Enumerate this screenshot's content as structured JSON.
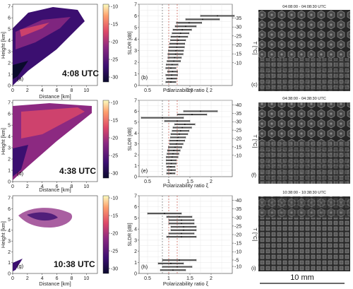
{
  "rows": [
    {
      "radar": {
        "label": "(a)",
        "time": "4:08 UTC"
      },
      "profile": {
        "label": "(b)",
        "temp_ticks": [
          "-35",
          "-30",
          "-25",
          "-20",
          "-15",
          "-10"
        ]
      },
      "image": {
        "label": "(c)",
        "title": "04:08:00 - 04:08:30 UTC"
      }
    },
    {
      "radar": {
        "label": "(d)",
        "time": "4:38 UTC"
      },
      "profile": {
        "label": "(e)",
        "temp_ticks": [
          "-40",
          "-35",
          "-30",
          "-25",
          "-20",
          "-15",
          "-10"
        ]
      },
      "image": {
        "label": "(f)",
        "title": "04:38:00 - 04:38:30 UTC"
      }
    },
    {
      "radar": {
        "label": "(g)",
        "time": "10:38 UTC"
      },
      "profile": {
        "label": "(h)",
        "temp_ticks": [
          "-40",
          "-35",
          "-30",
          "-25",
          "-20",
          "-15",
          "-10",
          "-10",
          "-5"
        ]
      },
      "image": {
        "label": "(i)",
        "title": "10:38:00 - 10:38:30 UTC"
      }
    }
  ],
  "radar_axes": {
    "xlabel": "Distance [km]",
    "ylabel": "Height [km]",
    "x_ticks": [
      "0",
      "2",
      "4",
      "6",
      "8",
      "10"
    ],
    "y_ticks": [
      "0",
      "1",
      "2",
      "3",
      "4",
      "5",
      "6",
      "7"
    ],
    "cbar_label": "SLDR [dB]",
    "cbar_ticks": [
      "-10",
      "-15",
      "-20",
      "-25",
      "-30"
    ]
  },
  "profile_axes": {
    "xlabel": "Polarizability ratio ξ",
    "x_ticks": [
      "0.5",
      "1",
      "1.5",
      "2"
    ],
    "y_ticks": [
      "0",
      "1",
      "2",
      "3",
      "4",
      "5",
      "6",
      "7"
    ],
    "t_label": "T [°C]"
  },
  "scale_bar": {
    "label": "10 mm"
  },
  "colors": {
    "cmap": [
      "#0a0a2c",
      "#3b0f70",
      "#8c2981",
      "#de4968",
      "#fe9f6d",
      "#fcfdbf"
    ],
    "profile_line": "#c0392b",
    "profile_fill": "#555555",
    "image_bg": "#1e1e1e"
  },
  "chart_data": [
    {
      "type": "profile",
      "panel": "(b)",
      "xlabel": "Polarizability ratio ξ",
      "xlim": [
        0.3,
        2.5
      ],
      "ylim": [
        0,
        7
      ],
      "y": [
        0.3,
        0.6,
        0.9,
        1.2,
        1.5,
        1.8,
        2.1,
        2.4,
        2.7,
        3.0,
        3.3,
        3.6,
        3.9,
        4.2,
        4.5,
        4.8,
        5.1,
        5.4,
        5.7,
        6.0
      ],
      "xi": [
        1.05,
        1.07,
        1.07,
        1.09,
        1.05,
        1.08,
        1.12,
        1.14,
        1.16,
        1.17,
        1.19,
        1.2,
        1.22,
        1.25,
        1.28,
        1.32,
        1.4,
        1.48,
        1.8,
        2.15
      ],
      "xi_err": [
        0.12,
        0.12,
        0.14,
        0.12,
        0.12,
        0.14,
        0.16,
        0.16,
        0.18,
        0.18,
        0.18,
        0.18,
        0.18,
        0.2,
        0.2,
        0.22,
        0.25,
        0.3,
        0.4,
        0.4
      ]
    },
    {
      "type": "profile",
      "panel": "(e)",
      "xlabel": "Polarizability ratio ξ",
      "xlim": [
        0.3,
        2.5
      ],
      "ylim": [
        0,
        7
      ],
      "y": [
        0.3,
        0.6,
        0.9,
        1.2,
        1.5,
        1.8,
        2.1,
        2.4,
        2.7,
        3.0,
        3.3,
        3.6,
        3.9,
        4.2,
        4.5,
        4.8,
        5.1,
        5.4,
        5.7,
        6.0
      ],
      "xi": [
        1.05,
        1.06,
        1.05,
        1.06,
        1.06,
        1.08,
        1.1,
        1.12,
        1.15,
        1.18,
        1.2,
        1.22,
        1.25,
        1.28,
        1.32,
        1.38,
        1.2,
        0.85,
        1.55,
        1.75
      ],
      "xi_err": [
        0.1,
        0.1,
        0.1,
        0.12,
        0.12,
        0.14,
        0.14,
        0.15,
        0.16,
        0.16,
        0.18,
        0.18,
        0.2,
        0.2,
        0.22,
        0.24,
        0.3,
        0.5,
        0.35,
        0.4
      ]
    },
    {
      "type": "profile",
      "panel": "(h)",
      "xlabel": "Polarizability ratio ξ",
      "xlim": [
        0.3,
        2.5
      ],
      "ylim": [
        0,
        7
      ],
      "y": [
        0.3,
        0.6,
        0.9,
        1.2,
        3.3,
        3.6,
        3.9,
        4.2,
        4.5,
        4.8,
        5.1,
        5.4
      ],
      "xi": [
        1.1,
        1.2,
        1.05,
        1.25,
        1.3,
        1.3,
        1.35,
        1.35,
        1.3,
        1.3,
        1.25,
        0.9
      ],
      "xi_err": [
        0.3,
        0.35,
        0.3,
        0.4,
        0.35,
        0.3,
        0.3,
        0.3,
        0.3,
        0.3,
        0.3,
        0.4
      ]
    }
  ]
}
